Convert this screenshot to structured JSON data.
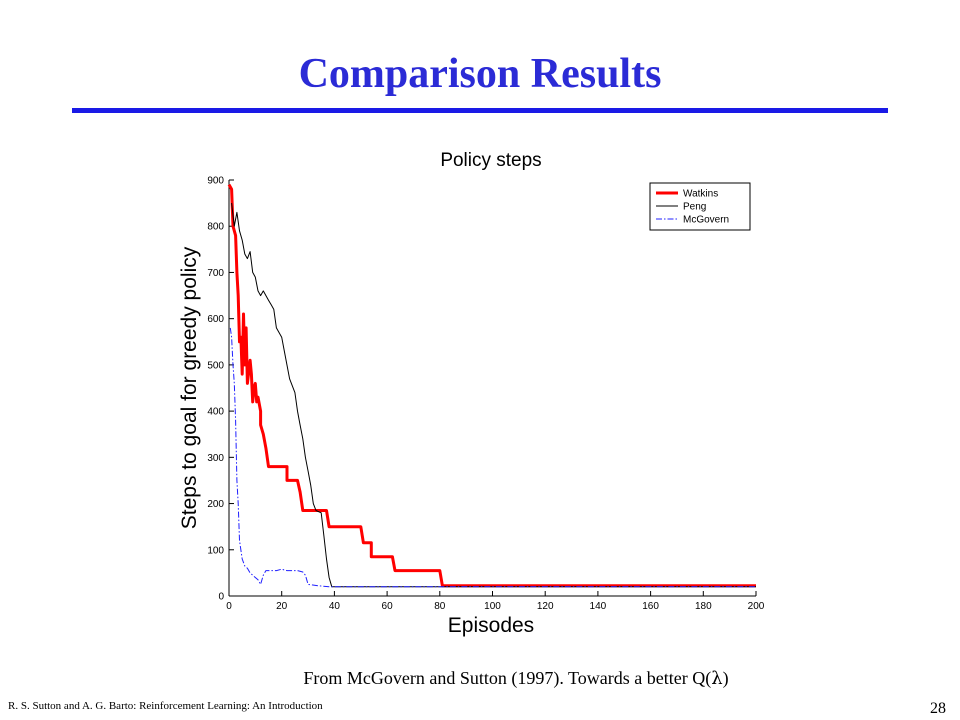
{
  "slide": {
    "title": "Comparison Results",
    "caption_prefix": "From McGovern and Sutton (1997).  Towards a better Q(",
    "caption_lambda": "λ",
    "caption_suffix": ")",
    "footer": "R. S. Sutton and A. G. Barto: Reinforcement Learning: An Introduction",
    "page_number": "28"
  },
  "chart_data": {
    "type": "line",
    "title": "Policy steps",
    "xlabel": "Episodes",
    "ylabel": "Steps to goal for greedy policy",
    "xlim": [
      0,
      200
    ],
    "ylim": [
      0,
      900
    ],
    "xticks": [
      0,
      20,
      40,
      60,
      80,
      100,
      120,
      140,
      160,
      180,
      200
    ],
    "yticks": [
      0,
      100,
      200,
      300,
      400,
      500,
      600,
      700,
      800,
      900
    ],
    "grid": false,
    "legend_position": "top-right",
    "series": [
      {
        "name": "Watkins",
        "color": "#ff0000",
        "style": "solid-thick",
        "points": [
          [
            0,
            890
          ],
          [
            1,
            880
          ],
          [
            1.5,
            800
          ],
          [
            2.5,
            780
          ],
          [
            3,
            700
          ],
          [
            3.5,
            650
          ],
          [
            4,
            550
          ],
          [
            4.5,
            560
          ],
          [
            5,
            480
          ],
          [
            5.5,
            610
          ],
          [
            6,
            500
          ],
          [
            6.5,
            580
          ],
          [
            7,
            460
          ],
          [
            8,
            510
          ],
          [
            8.5,
            480
          ],
          [
            9,
            420
          ],
          [
            9.5,
            450
          ],
          [
            10,
            460
          ],
          [
            10.5,
            420
          ],
          [
            11,
            430
          ],
          [
            12,
            400
          ],
          [
            12,
            370
          ],
          [
            13,
            350
          ],
          [
            14,
            320
          ],
          [
            14.5,
            300
          ],
          [
            15,
            280
          ],
          [
            22,
            280
          ],
          [
            22,
            250
          ],
          [
            26,
            250
          ],
          [
            27,
            225
          ],
          [
            28,
            185
          ],
          [
            37,
            185
          ],
          [
            38,
            150
          ],
          [
            50,
            150
          ],
          [
            51,
            115
          ],
          [
            54,
            115
          ],
          [
            54,
            85
          ],
          [
            62,
            85
          ],
          [
            63,
            55
          ],
          [
            80,
            55
          ],
          [
            81,
            22
          ],
          [
            200,
            22
          ]
        ]
      },
      {
        "name": "Peng",
        "color": "#000000",
        "style": "solid-thin",
        "points": [
          [
            1,
            850
          ],
          [
            2,
            800
          ],
          [
            3,
            830
          ],
          [
            4,
            790
          ],
          [
            5,
            770
          ],
          [
            6,
            740
          ],
          [
            7,
            730
          ],
          [
            8,
            745
          ],
          [
            9,
            700
          ],
          [
            10,
            690
          ],
          [
            11,
            660
          ],
          [
            12,
            650
          ],
          [
            13,
            660
          ],
          [
            15,
            640
          ],
          [
            16,
            630
          ],
          [
            17,
            620
          ],
          [
            18,
            580
          ],
          [
            20,
            560
          ],
          [
            21,
            530
          ],
          [
            23,
            470
          ],
          [
            25,
            440
          ],
          [
            26,
            400
          ],
          [
            27,
            370
          ],
          [
            28,
            340
          ],
          [
            29,
            300
          ],
          [
            30,
            270
          ],
          [
            31,
            240
          ],
          [
            32,
            200
          ],
          [
            33,
            185
          ],
          [
            35,
            180
          ],
          [
            36,
            130
          ],
          [
            37,
            80
          ],
          [
            38,
            40
          ],
          [
            39,
            20
          ],
          [
            200,
            20
          ]
        ]
      },
      {
        "name": "McGovern",
        "color": "#2020ff",
        "style": "dashdot",
        "points": [
          [
            0.5,
            580
          ],
          [
            1,
            560
          ],
          [
            1.5,
            500
          ],
          [
            2,
            460
          ],
          [
            2.5,
            380
          ],
          [
            3,
            250
          ],
          [
            3.5,
            200
          ],
          [
            4,
            120
          ],
          [
            5,
            80
          ],
          [
            6,
            65
          ],
          [
            7,
            60
          ],
          [
            8,
            50
          ],
          [
            9,
            45
          ],
          [
            10,
            40
          ],
          [
            11,
            35
          ],
          [
            12,
            25
          ],
          [
            13,
            45
          ],
          [
            14,
            55
          ],
          [
            16,
            55
          ],
          [
            18,
            55
          ],
          [
            20,
            58
          ],
          [
            22,
            55
          ],
          [
            24,
            55
          ],
          [
            26,
            55
          ],
          [
            28,
            52
          ],
          [
            29,
            45
          ],
          [
            30,
            25
          ],
          [
            34,
            22
          ],
          [
            38,
            20
          ],
          [
            200,
            20
          ]
        ]
      }
    ]
  }
}
